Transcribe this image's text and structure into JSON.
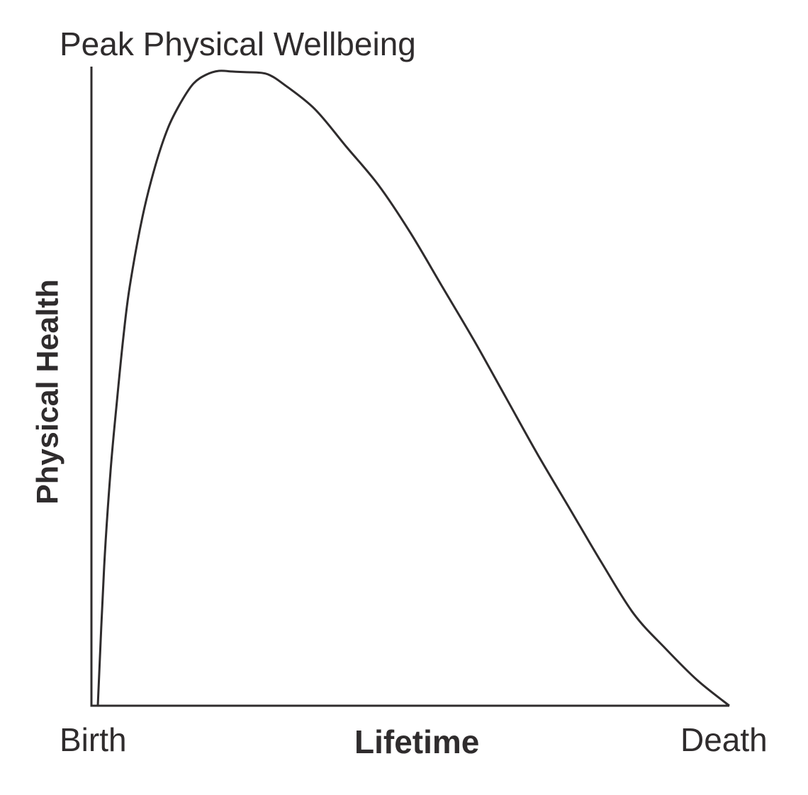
{
  "chart_data": {
    "type": "line",
    "title": "",
    "xlabel": "Lifetime",
    "ylabel": "Physical Health",
    "x_ticks": [
      "Birth",
      "Death"
    ],
    "annotations": [
      "Peak Physical Wellbeing"
    ],
    "grid": false,
    "legend": "none",
    "xlim": [
      0,
      100
    ],
    "ylim": [
      0,
      100
    ],
    "series": [
      {
        "x": [
          1,
          2,
          3,
          4,
          5,
          6,
          8,
          10,
          12,
          14,
          16,
          18,
          20,
          22,
          24,
          26.5,
          28,
          30,
          35,
          40,
          45,
          50,
          55,
          60,
          65,
          70,
          75,
          80,
          85,
          90,
          95,
          100
        ],
        "values": [
          0,
          22,
          37,
          48,
          58,
          66,
          77,
          85,
          91,
          95,
          98,
          99.4,
          100,
          99.9,
          99.8,
          99.7,
          99.3,
          98,
          94,
          88,
          82,
          74.5,
          66,
          57.5,
          48.5,
          39.5,
          31,
          22.5,
          14.5,
          9,
          4,
          0
        ]
      }
    ],
    "colors": {
      "axis": "#2f2c2d",
      "line": "#2f2c2d",
      "text": "#2f2c2d",
      "background": "#ffffff"
    }
  }
}
